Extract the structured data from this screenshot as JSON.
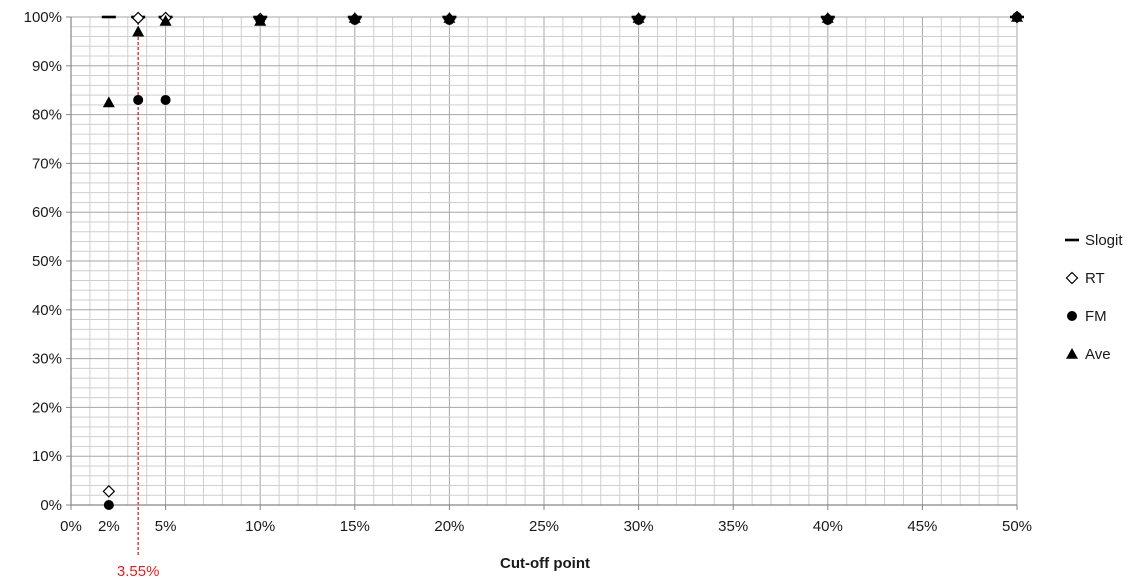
{
  "chart_data": {
    "type": "scatter",
    "title": "",
    "xlabel": "Cut-off point",
    "ylabel": "",
    "xlim": [
      0,
      50
    ],
    "ylim": [
      0,
      100
    ],
    "grid": true,
    "legend_position": "right",
    "x_ticks": [
      "0%",
      "2%",
      "5%",
      "10%",
      "15%",
      "20%",
      "25%",
      "30%",
      "35%",
      "40%",
      "45%",
      "50%"
    ],
    "x_tick_values": [
      0,
      2,
      5,
      10,
      15,
      20,
      25,
      30,
      35,
      40,
      45,
      50
    ],
    "y_ticks": [
      "0%",
      "10%",
      "20%",
      "30%",
      "40%",
      "50%",
      "60%",
      "70%",
      "80%",
      "90%",
      "100%"
    ],
    "y_tick_values": [
      0,
      10,
      20,
      30,
      40,
      50,
      60,
      70,
      80,
      90,
      100
    ],
    "series": [
      {
        "name": "Slogit",
        "marker": "dash",
        "points": [
          [
            2,
            100
          ],
          [
            3.55,
            100
          ],
          [
            5,
            100
          ],
          [
            10,
            100
          ],
          [
            15,
            100
          ],
          [
            20,
            100
          ],
          [
            30,
            100
          ],
          [
            40,
            100
          ],
          [
            50,
            100
          ]
        ]
      },
      {
        "name": "RT",
        "marker": "diamond-open",
        "points": [
          [
            2,
            2.8
          ],
          [
            3.55,
            99.8
          ],
          [
            5,
            99.8
          ],
          [
            10,
            99.6
          ],
          [
            15,
            99.6
          ],
          [
            20,
            99.6
          ],
          [
            30,
            99.6
          ],
          [
            40,
            99.6
          ],
          [
            50,
            100
          ]
        ]
      },
      {
        "name": "FM",
        "marker": "circle",
        "points": [
          [
            2,
            0
          ],
          [
            3.55,
            83
          ],
          [
            5,
            83
          ],
          [
            10,
            99.4
          ],
          [
            15,
            99.4
          ],
          [
            20,
            99.4
          ],
          [
            30,
            99.4
          ],
          [
            40,
            99.4
          ],
          [
            50,
            100
          ]
        ]
      },
      {
        "name": "Ave",
        "marker": "triangle",
        "points": [
          [
            2,
            82.5
          ],
          [
            3.55,
            97
          ],
          [
            5,
            99.2
          ],
          [
            10,
            99.2
          ],
          [
            15,
            99.8
          ],
          [
            20,
            99.8
          ],
          [
            30,
            99.8
          ],
          [
            40,
            99.8
          ],
          [
            50,
            100
          ]
        ]
      }
    ],
    "reference_line": {
      "x": 3.55,
      "label": "3.55%",
      "color": "#e41e1e"
    }
  }
}
